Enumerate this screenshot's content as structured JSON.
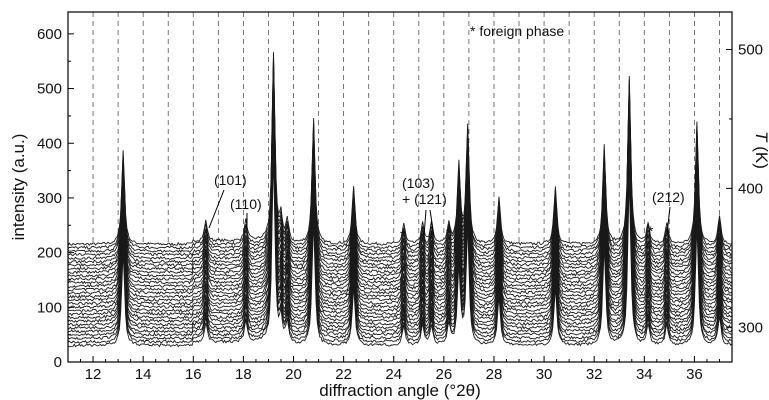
{
  "chart_data": {
    "type": "line",
    "title": "",
    "xlabel": "diffraction angle   (°2θ)",
    "ylabel": "intensity (a.u.)",
    "y2label_italic": "T",
    "y2label_unit": " (K)",
    "xlim": [
      11,
      37.5
    ],
    "ylim": [
      0,
      640
    ],
    "y2lim": [
      275,
      527
    ],
    "x_ticks": [
      12,
      14,
      16,
      18,
      20,
      22,
      24,
      26,
      28,
      30,
      32,
      34,
      36
    ],
    "y_ticks": [
      0,
      100,
      200,
      300,
      400,
      500,
      600
    ],
    "y2_ticks": [
      300,
      400,
      500
    ],
    "grid": "vertical dashed lines",
    "series_count": 30,
    "temperature_range": [
      300,
      500
    ],
    "baseline_offsets": {
      "first": 30,
      "last": 215
    },
    "reflections_2theta": [
      13.2,
      16.5,
      18.1,
      19.2,
      19.5,
      19.75,
      20.8,
      22.4,
      24.4,
      25.15,
      25.5,
      26.2,
      26.6,
      26.95,
      28.2,
      30.45,
      32.4,
      33.4,
      34.15,
      34.9,
      36.1,
      37.0
    ],
    "peak_tops_intensity": [
      412,
      240,
      240,
      640,
      250,
      245,
      485,
      328,
      240,
      240,
      240,
      240,
      375,
      470,
      305,
      328,
      422,
      585,
      240,
      240,
      478,
      260
    ],
    "annotations": {
      "legend_star": "* foreign phase",
      "p101": "(101)",
      "p110": "(110)",
      "p103": "(103)",
      "p121": "+ (121)",
      "p212": "(212)",
      "star": "*"
    }
  }
}
